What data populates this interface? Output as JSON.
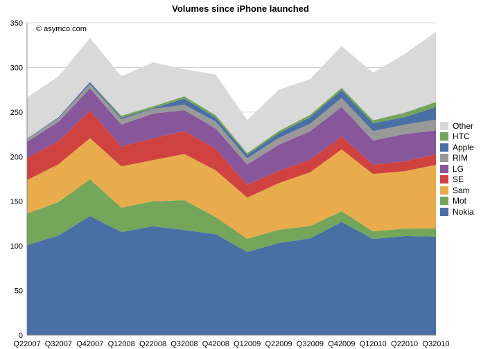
{
  "chart_data": {
    "type": "area",
    "stacked": true,
    "title": "Volumes since iPhone launched",
    "watermark": "© asymco.com",
    "xlabel": "",
    "ylabel": "",
    "ylim": [
      0,
      350
    ],
    "yticks": [
      0,
      50,
      100,
      150,
      200,
      250,
      300,
      350
    ],
    "grid": true,
    "legend_position": "right",
    "categories": [
      "Q22007",
      "Q32007",
      "Q42007",
      "Q12008",
      "Q22008",
      "Q32008",
      "Q42008",
      "Q12009",
      "Q22009",
      "Q32009",
      "Q42009",
      "Q12010",
      "Q22010",
      "Q32010"
    ],
    "series": [
      {
        "name": "Nokia",
        "color": "#4a6fa5",
        "values": [
          100.8,
          111.7,
          133.5,
          115.5,
          122.0,
          117.8,
          113.1,
          93.2,
          103.2,
          108.5,
          126.9,
          107.8,
          111.1,
          110.4
        ]
      },
      {
        "name": "Mot",
        "color": "#73a65a",
        "values": [
          35.5,
          37.5,
          41.1,
          27.4,
          28.1,
          33.4,
          19.2,
          14.7,
          14.9,
          13.8,
          12.0,
          8.5,
          8.3,
          9.1
        ]
      },
      {
        "name": "Sam",
        "color": "#e8ac4c",
        "values": [
          37.4,
          42.3,
          46.3,
          46.3,
          46.0,
          51.8,
          52.4,
          46.2,
          52.2,
          60.2,
          69.3,
          64.3,
          64.3,
          71.4
        ]
      },
      {
        "name": "SE",
        "color": "#cf4240",
        "values": [
          24.9,
          25.9,
          30.8,
          22.3,
          24.4,
          25.7,
          24.2,
          14.5,
          13.8,
          14.1,
          14.6,
          10.5,
          11.0,
          11.6
        ]
      },
      {
        "name": "LG",
        "color": "#87569b",
        "values": [
          18.0,
          21.6,
          24.8,
          24.4,
          27.7,
          23.5,
          22.6,
          22.6,
          29.2,
          31.9,
          32.8,
          27.1,
          30.6,
          27.0
        ]
      },
      {
        "name": "RIM",
        "color": "#999999",
        "values": [
          3.5,
          4.2,
          4.9,
          6.1,
          5.4,
          6.0,
          7.8,
          7.0,
          7.8,
          8.5,
          10.3,
          10.5,
          10.6,
          12.1
        ]
      },
      {
        "name": "Apple",
        "color": "#4a6fa5",
        "values": [
          0.3,
          1.1,
          2.3,
          1.7,
          0.7,
          6.9,
          4.4,
          3.8,
          5.2,
          7.4,
          8.7,
          8.8,
          8.4,
          14.1
        ]
      },
      {
        "name": "HTC",
        "color": "#73a65a",
        "values": [
          0,
          0,
          0,
          2.2,
          2.2,
          2.5,
          2.8,
          2.0,
          2.4,
          2.6,
          2.6,
          3.3,
          5.0,
          5.6
        ]
      },
      {
        "name": "Other",
        "color": "#d9d9d9",
        "values": [
          46.1,
          45.7,
          49.3,
          44.1,
          49.2,
          30.4,
          45.5,
          37.0,
          46.3,
          40.0,
          46.8,
          53.4,
          65.7,
          78.7
        ]
      }
    ]
  }
}
